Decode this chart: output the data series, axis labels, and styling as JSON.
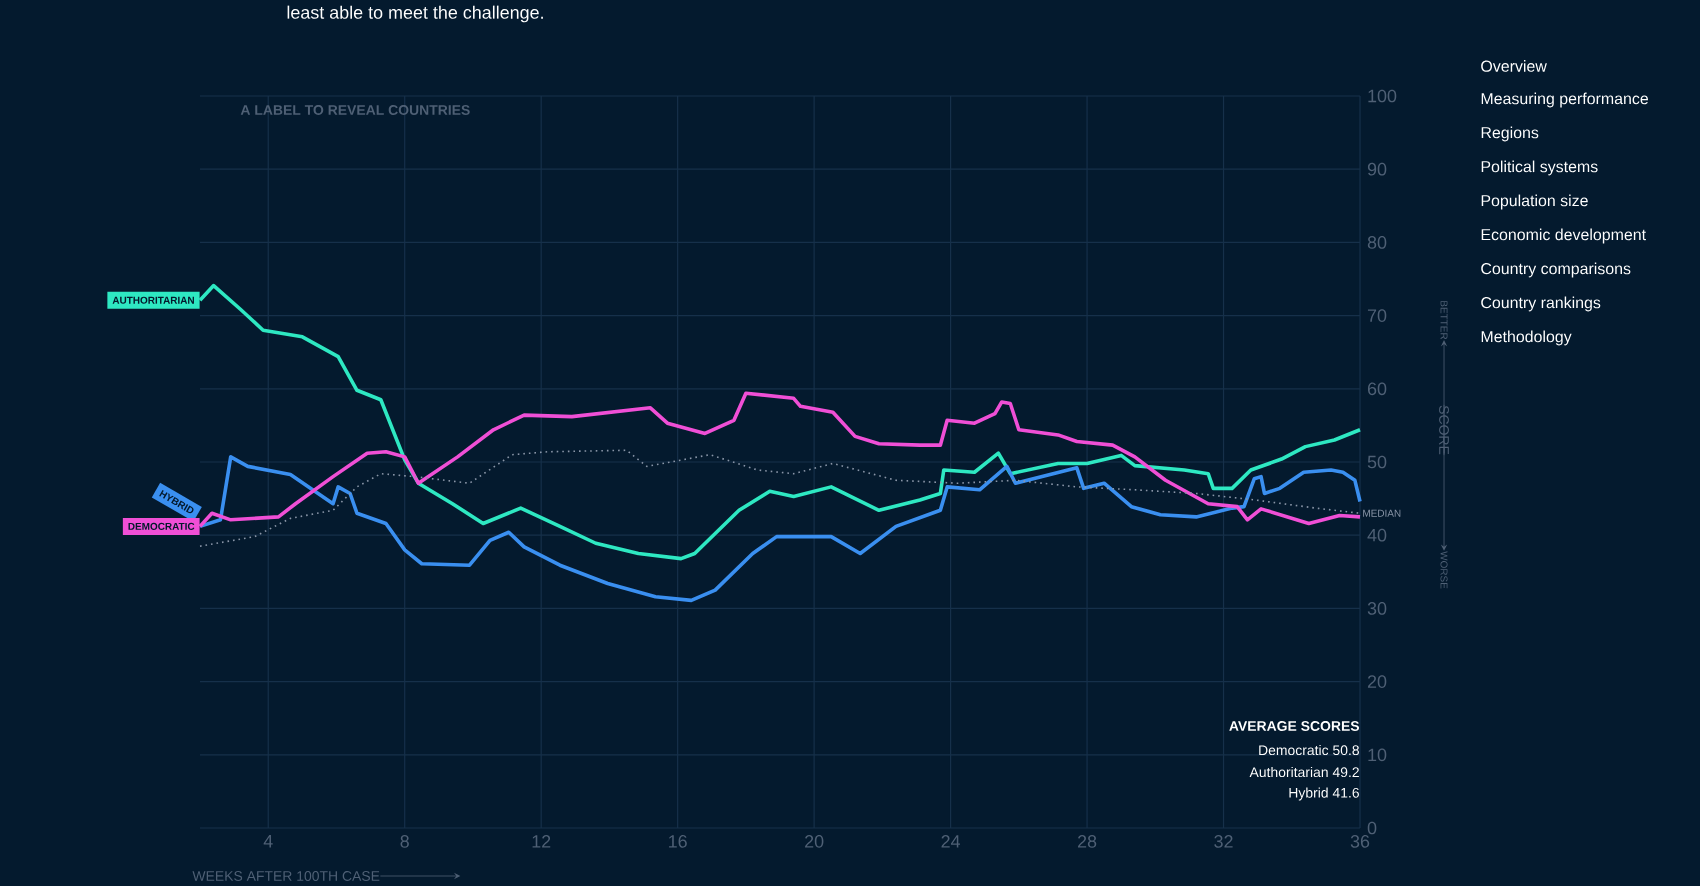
{
  "chart_data": {
    "type": "line",
    "xlabel": "WEEKS AFTER 100TH CASE",
    "ylabel": "SCORE",
    "annotations": [
      "least able to meet the challenge.",
      "A LABEL TO REVEAL COUNTRIES",
      "BETTER",
      "WORSE",
      "AVERAGE SCORES",
      "Democratic 50.8",
      "Authoritarian 49.2",
      "Hybrid 41.6",
      "Overview",
      "Measuring performance",
      "Regions",
      "Political systems",
      "Population size",
      "Economic development",
      "Country comparisons",
      "Country rankings",
      "Methodology"
    ],
    "xlim": [
      2,
      36
    ],
    "ylim": [
      0,
      100
    ],
    "xticks": [
      4,
      8,
      12,
      16,
      20,
      24,
      28,
      32,
      36
    ],
    "yticks": [
      0,
      10,
      20,
      30,
      40,
      50,
      60,
      70,
      80,
      90,
      100
    ],
    "grid": true,
    "marker": "none",
    "series": [
      {
        "name": "AUTHORITARIAN",
        "color": "#2ee8c2",
        "line_style": "solid",
        "x": [
          2,
          2.4,
          3.2,
          3.85,
          5.0,
          6.05,
          6.6,
          7.3,
          8.0,
          8.4,
          9.4,
          10.3,
          11.4,
          12.55,
          13.6,
          14.85,
          16.1,
          16.5,
          17.8,
          18.7,
          19.4,
          20.5,
          21.9,
          23.1,
          23.7,
          23.8,
          24.7,
          25.4,
          25.75,
          27.15,
          28.0,
          29.0,
          29.4,
          30.85,
          31.55,
          31.7,
          32.25,
          32.8,
          33.7,
          34.4,
          35.25,
          36
        ],
        "values": [
          72.1,
          74.1,
          70.8,
          68.0,
          67.1,
          64.4,
          59.8,
          58.5,
          50.3,
          47.1,
          44.3,
          41.6,
          43.7,
          41.2,
          38.9,
          37.5,
          36.8,
          37.5,
          43.4,
          46.0,
          45.3,
          46.6,
          43.4,
          44.8,
          45.7,
          48.9,
          48.6,
          51.2,
          48.4,
          49.8,
          49.8,
          50.9,
          49.5,
          48.9,
          48.4,
          46.4,
          46.4,
          48.9,
          50.4,
          52.1,
          53.0,
          54.4
        ]
      },
      {
        "name": "HYBRID",
        "color": "#3a8ff0",
        "line_style": "solid",
        "x": [
          2,
          2.6,
          2.9,
          3.4,
          4.65,
          5.9,
          6.05,
          6.4,
          6.6,
          7.45,
          8.0,
          8.5,
          9.9,
          10.5,
          11.05,
          11.5,
          12.55,
          13.95,
          15.35,
          16.4,
          17.1,
          18.2,
          18.9,
          20.5,
          21.35,
          22.4,
          23.7,
          23.9,
          24.85,
          25.65,
          25.9,
          27.7,
          27.9,
          28.5,
          29.3,
          30.15,
          31.2,
          32.25,
          32.6,
          32.9,
          33.1,
          33.2,
          33.65,
          34.35,
          35.15,
          35.5,
          35.85,
          36
        ],
        "values": [
          41.2,
          42.1,
          50.7,
          49.4,
          48.3,
          44.3,
          46.6,
          45.7,
          43.0,
          41.6,
          38.0,
          36.1,
          35.9,
          39.3,
          40.4,
          38.4,
          35.9,
          33.4,
          31.6,
          31.1,
          32.5,
          37.5,
          39.8,
          39.8,
          37.5,
          41.2,
          43.4,
          46.6,
          46.2,
          49.4,
          47.1,
          49.2,
          46.4,
          47.1,
          43.9,
          42.8,
          42.5,
          43.7,
          43.9,
          47.7,
          48.0,
          45.7,
          46.4,
          48.6,
          48.9,
          48.6,
          47.5,
          44.6
        ]
      },
      {
        "name": "DEMOCRATIC",
        "color": "#f04fd6",
        "line_style": "solid",
        "x": [
          2,
          2.35,
          2.9,
          4.3,
          4.8,
          5.9,
          6.9,
          7.45,
          8.0,
          8.4,
          9.55,
          10.6,
          11.5,
          12.9,
          15.2,
          15.7,
          16.8,
          17.65,
          18.0,
          19.4,
          19.6,
          20.55,
          21.2,
          21.9,
          23.1,
          23.7,
          23.9,
          24.7,
          25.3,
          25.5,
          25.75,
          26.0,
          27.15,
          27.7,
          28.75,
          29.4,
          30.3,
          31.55,
          32.4,
          32.7,
          33.1,
          34.5,
          35.4,
          36
        ],
        "values": [
          41.2,
          43.0,
          42.1,
          42.5,
          44.3,
          48.0,
          51.2,
          51.4,
          50.7,
          47.1,
          50.7,
          54.4,
          56.4,
          56.2,
          57.4,
          55.3,
          53.9,
          55.7,
          59.4,
          58.7,
          57.6,
          56.8,
          53.5,
          52.5,
          52.3,
          52.3,
          55.7,
          55.3,
          56.6,
          58.2,
          58.0,
          54.4,
          53.7,
          52.8,
          52.3,
          50.7,
          47.5,
          44.3,
          43.9,
          42.1,
          43.6,
          41.6,
          42.7,
          42.5
        ]
      },
      {
        "name": "MEDIAN",
        "color": "#8a96a8",
        "line_style": "dotted",
        "x": [
          2,
          3.6,
          4.65,
          5.9,
          6.6,
          7.3,
          8.3,
          9.9,
          11.15,
          12.2,
          14.5,
          15.1,
          16.95,
          18.35,
          19.4,
          20.55,
          22.4,
          24.2,
          25.9,
          27.7,
          29.4,
          31.2,
          32.95,
          34.7,
          36
        ],
        "values": [
          38.5,
          39.8,
          42.3,
          43.4,
          46.6,
          48.4,
          48.0,
          47.1,
          51.0,
          51.4,
          51.6,
          49.4,
          51.0,
          48.9,
          48.4,
          49.8,
          47.5,
          47.1,
          47.5,
          46.6,
          46.2,
          45.7,
          44.8,
          43.7,
          43.0
        ]
      }
    ]
  }
}
